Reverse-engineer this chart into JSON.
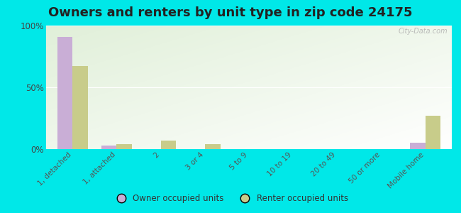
{
  "title": "Owners and renters by unit type in zip code 24175",
  "categories": [
    "1, detached",
    "1, attached",
    "2",
    "3 or 4",
    "5 to 9",
    "10 to 19",
    "20 to 49",
    "50 or more",
    "Mobile home"
  ],
  "owner_values": [
    91,
    3,
    0,
    0,
    0,
    0,
    0,
    0,
    5
  ],
  "renter_values": [
    67,
    4,
    7,
    4,
    0,
    0,
    0,
    0,
    27
  ],
  "owner_color": "#c9aed6",
  "renter_color": "#c8cc8a",
  "bg_outer": "#00e8e8",
  "ylim": [
    0,
    100
  ],
  "yticks": [
    0,
    50,
    100
  ],
  "ytick_labels": [
    "0%",
    "50%",
    "100%"
  ],
  "bar_width": 0.35,
  "legend_owner": "Owner occupied units",
  "legend_renter": "Renter occupied units",
  "title_fontsize": 13,
  "watermark": "City-Data.com"
}
